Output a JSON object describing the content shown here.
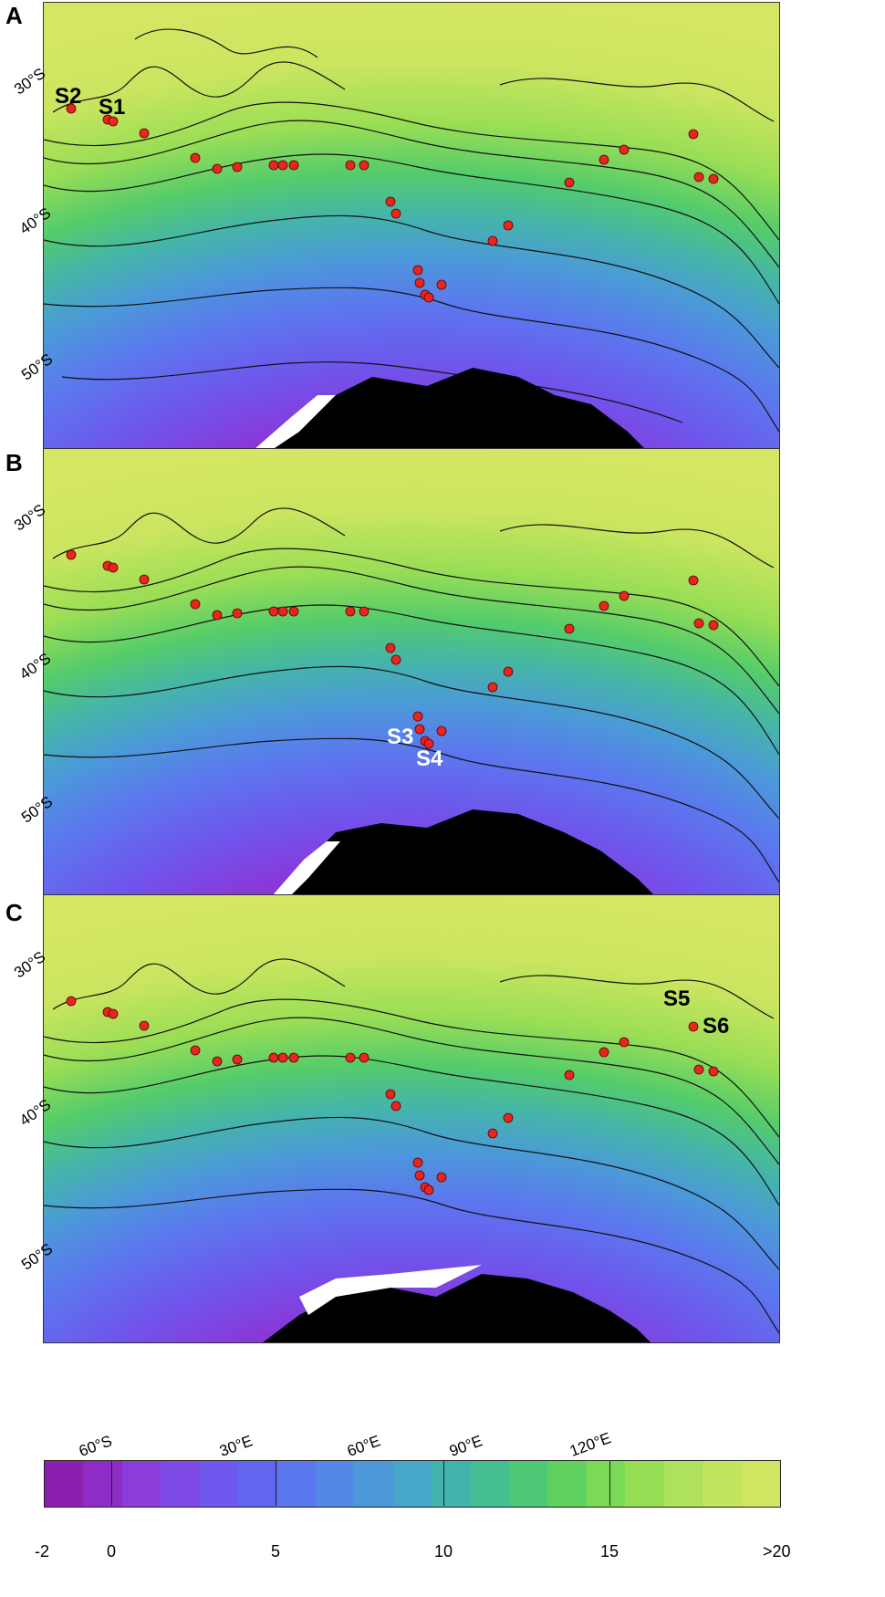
{
  "panels": [
    {
      "letter": "A",
      "site_labels": [
        "S2",
        "S1"
      ]
    },
    {
      "letter": "B",
      "site_labels": [
        "S3",
        "S4"
      ]
    },
    {
      "letter": "C",
      "site_labels": [
        "S5",
        "S6"
      ]
    }
  ],
  "lat_labels": [
    "30°S",
    "40°S",
    "50°S"
  ],
  "lon_labels": [
    "60°S",
    "30°E",
    "60°E",
    "90°E",
    "120°E"
  ],
  "colorbar": {
    "tick_labels": [
      "-2",
      "0",
      "5",
      "10",
      "15",
      ">20"
    ],
    "colors": [
      "#8a1fb0",
      "#8f2cc8",
      "#8a3ddb",
      "#7d4ae6",
      "#6e58ed",
      "#6267ef",
      "#5a77ee",
      "#5488e6",
      "#4d98da",
      "#46a7c8",
      "#42b4ad",
      "#44bf92",
      "#4dc877",
      "#5fd15e",
      "#7ad955",
      "#96df55",
      "#aee25b",
      "#c2e45e",
      "#d0e661"
    ]
  },
  "colors": {
    "sample_point": "#e8251f",
    "land": "#000000",
    "ice": "#ffffff"
  }
}
